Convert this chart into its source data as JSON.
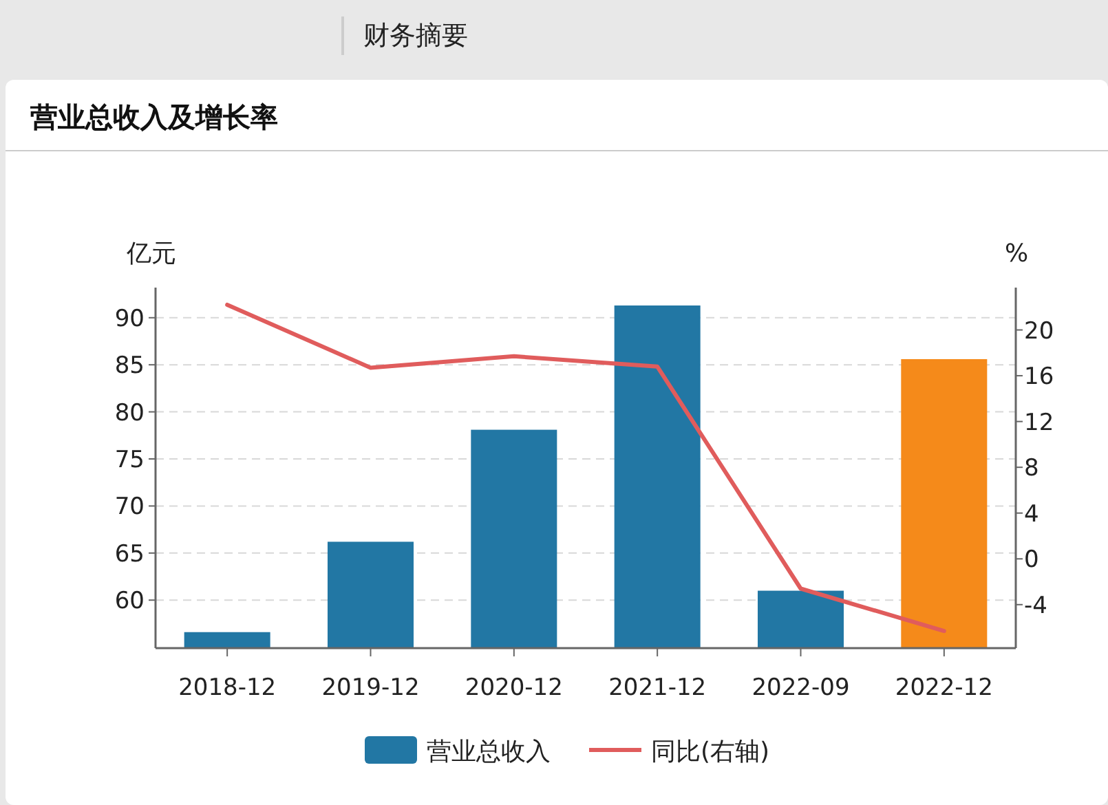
{
  "chart_data": {
    "type": "bar",
    "title": "营业总收入及增长率",
    "annotations": [
      "财务摘要"
    ],
    "ylabel": "亿元",
    "y2label": "%",
    "categories": [
      "2018-12",
      "2019-12",
      "2020-12",
      "2021-12",
      "2022-09",
      "2022-12"
    ],
    "series": [
      {
        "name": "营业总收入",
        "color": "#2277a4",
        "colors": [
          "#2277a4",
          "#2277a4",
          "#2277a4",
          "#2277a4",
          "#2277a4",
          "#f58a1a"
        ],
        "values": [
          56.6,
          66.2,
          78.1,
          91.3,
          61.0,
          85.6
        ]
      },
      {
        "name": "同比(右轴)",
        "type": "line",
        "axis": "y2",
        "color": "#e05c5c",
        "values": [
          22.2,
          16.7,
          17.7,
          16.8,
          -2.6,
          -6.3
        ]
      }
    ],
    "ylim": [
      54.9,
      93.2
    ],
    "yticks": [
      60,
      65,
      70,
      75,
      80,
      85,
      90
    ],
    "y2lim": [
      -7.8,
      23.7
    ],
    "y2ticks": [
      -4,
      0,
      4,
      8,
      12,
      16,
      20
    ],
    "grid": "y",
    "legend": "bottom",
    "marker": "none",
    "line_style": "solid"
  }
}
